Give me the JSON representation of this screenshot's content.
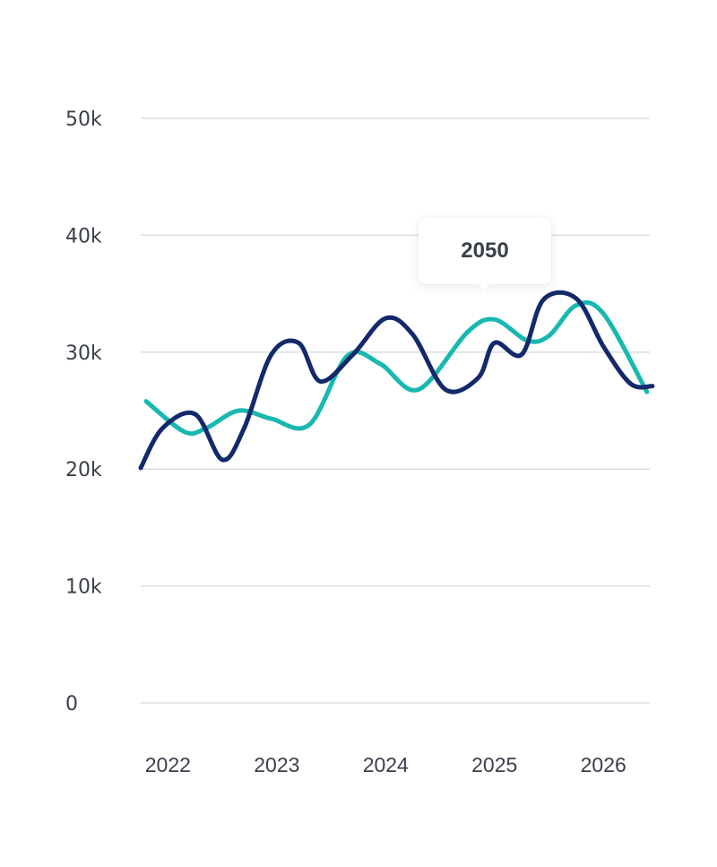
{
  "chart_data": {
    "type": "line",
    "title": "",
    "xlabel": "",
    "ylabel": "",
    "y_ticks": [
      "0",
      "10k",
      "20k",
      "30k",
      "40k",
      "50k"
    ],
    "y_tick_values": [
      0,
      10000,
      20000,
      30000,
      40000,
      50000
    ],
    "ylim": [
      0,
      50000
    ],
    "x_ticks": [
      "2022",
      "2023",
      "2024",
      "2025",
      "2026"
    ],
    "x_tick_values": [
      2022.25,
      2023.25,
      2024.25,
      2025.25,
      2026.25
    ],
    "xlim": [
      2022.0,
      2026.8
    ],
    "grid": true,
    "series": [
      {
        "color": "#17b8b0",
        "x": [
          2022.05,
          2022.4,
          2022.6,
          2022.9,
          2023.2,
          2023.55,
          2023.9,
          2024.2,
          2024.55,
          2025.0,
          2025.25,
          2025.55,
          2025.75,
          2026.0,
          2026.25,
          2026.65
        ],
        "y": [
          25800,
          23200,
          23500,
          25000,
          24300,
          23800,
          29700,
          29000,
          26800,
          31700,
          32800,
          31000,
          31400,
          34000,
          33300,
          26600
        ]
      },
      {
        "color": "#13296b",
        "x": [
          2022.0,
          2022.2,
          2022.5,
          2022.75,
          2022.95,
          2023.2,
          2023.45,
          2023.65,
          2023.95,
          2024.25,
          2024.5,
          2024.8,
          2025.1,
          2025.25,
          2025.5,
          2025.7,
          2026.0,
          2026.25,
          2026.5,
          2026.7
        ],
        "y": [
          20100,
          23500,
          24700,
          20800,
          23500,
          29800,
          30800,
          27500,
          29800,
          32900,
          31500,
          26800,
          27800,
          30800,
          29800,
          34500,
          34600,
          30500,
          27300,
          27100
        ]
      }
    ],
    "tooltip": "2050"
  }
}
